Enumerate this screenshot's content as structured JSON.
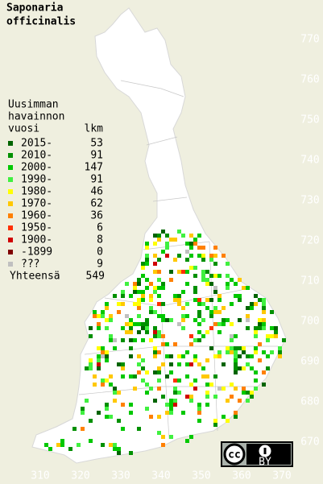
{
  "title": [
    "Saponaria",
    "officinalis"
  ],
  "legend": {
    "heading": [
      "Uusimman",
      "havainnon",
      "vuosi"
    ],
    "count_heading": "lkm",
    "items": [
      {
        "label": "2015-",
        "count": 53,
        "color": "#006400"
      },
      {
        "label": "2010-",
        "count": 91,
        "color": "#009000"
      },
      {
        "label": "2000-",
        "count": 147,
        "color": "#00c800"
      },
      {
        "label": "1990-",
        "count": 91,
        "color": "#40f040"
      },
      {
        "label": "1980-",
        "count": 46,
        "color": "#ffff00"
      },
      {
        "label": "1970-",
        "count": 62,
        "color": "#ffc800"
      },
      {
        "label": "1960-",
        "count": 36,
        "color": "#ff8000"
      },
      {
        "label": "1950-",
        "count": 6,
        "color": "#ff3000"
      },
      {
        "label": "1900-",
        "count": 8,
        "color": "#d00000"
      },
      {
        "label": "-1899",
        "count": 0,
        "color": "#800000"
      },
      {
        "label": "???",
        "count": 9,
        "color": "#c0c0c0"
      }
    ],
    "total_label": "Yhteensä",
    "total": 549
  },
  "grid": {
    "x_labels": [
      310,
      320,
      330,
      340,
      350,
      360,
      370
    ],
    "y_labels": [
      770,
      760,
      750,
      740,
      730,
      720,
      710,
      700,
      690,
      680,
      670
    ]
  },
  "license": {
    "cc": "cc",
    "by": "BY"
  }
}
